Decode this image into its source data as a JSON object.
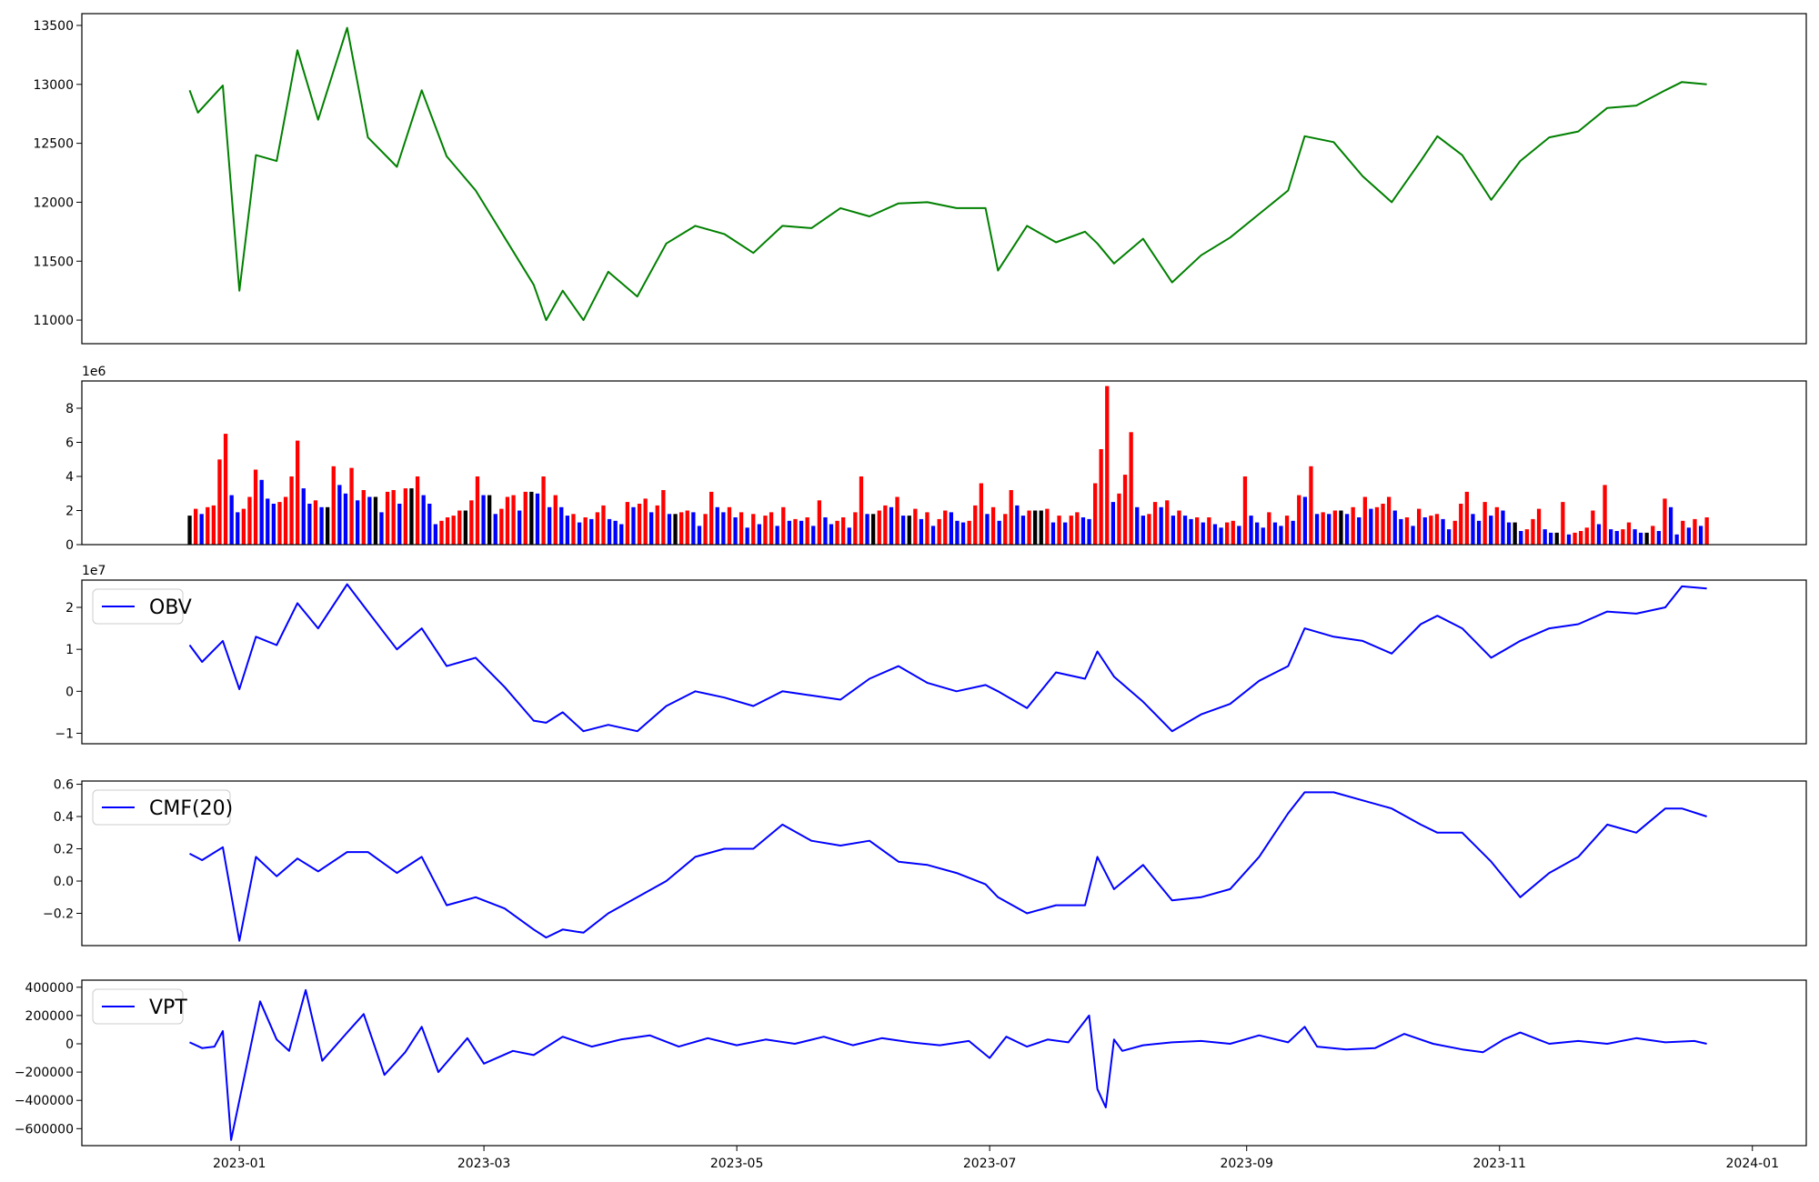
{
  "chart_data": [
    {
      "id": "price",
      "type": "line",
      "ylim": [
        10800,
        13600
      ],
      "yticks": [
        11000,
        11500,
        12000,
        12500,
        13000,
        13500
      ],
      "ytick_labels": [
        "11000",
        "11500",
        "12000",
        "12500",
        "13000",
        "13500"
      ],
      "offset_label": "",
      "legend": "",
      "color": "#008000",
      "series": [
        {
          "x": [
            "2022-12-20",
            "2022-12-22",
            "2022-12-28",
            "2023-01-01",
            "2023-01-05",
            "2023-01-10",
            "2023-01-15",
            "2023-01-20",
            "2023-01-27",
            "2023-02-01",
            "2023-02-08",
            "2023-02-14",
            "2023-02-20",
            "2023-02-27",
            "2023-03-06",
            "2023-03-13",
            "2023-03-16",
            "2023-03-20",
            "2023-03-25",
            "2023-03-31",
            "2023-04-07",
            "2023-04-14",
            "2023-04-21",
            "2023-04-28",
            "2023-05-05",
            "2023-05-12",
            "2023-05-19",
            "2023-05-26",
            "2023-06-02",
            "2023-06-09",
            "2023-06-16",
            "2023-06-23",
            "2023-06-30",
            "2023-07-03",
            "2023-07-10",
            "2023-07-17",
            "2023-07-24",
            "2023-07-27",
            "2023-07-31",
            "2023-08-07",
            "2023-08-14",
            "2023-08-21",
            "2023-08-28",
            "2023-09-04",
            "2023-09-11",
            "2023-09-15",
            "2023-09-22",
            "2023-09-29",
            "2023-10-06",
            "2023-10-13",
            "2023-10-17",
            "2023-10-23",
            "2023-10-30",
            "2023-11-06",
            "2023-11-13",
            "2023-11-20",
            "2023-11-27",
            "2023-12-04",
            "2023-12-11",
            "2023-12-15",
            "2023-12-21"
          ],
          "values": [
            12950,
            12760,
            12990,
            11250,
            12400,
            12350,
            13290,
            12700,
            13480,
            12550,
            12300,
            12950,
            12390,
            12100,
            11700,
            11300,
            11000,
            11250,
            11000,
            11410,
            11200,
            11650,
            11800,
            11730,
            11570,
            11800,
            11780,
            11950,
            11880,
            11990,
            12000,
            11950,
            11950,
            11420,
            11800,
            11660,
            11750,
            11650,
            11480,
            11690,
            11320,
            11550,
            11700,
            11900,
            12100,
            12560,
            12510,
            12220,
            12000,
            12350,
            12560,
            12400,
            12020,
            12350,
            12550,
            12600,
            12800,
            12820,
            12950,
            13020,
            13000
          ]
        }
      ]
    },
    {
      "id": "volume",
      "type": "bar",
      "ylim": [
        0,
        9600000
      ],
      "yticks": [
        0,
        2000000,
        4000000,
        6000000,
        8000000
      ],
      "ytick_labels": [
        "0",
        "2",
        "4",
        "6",
        "8"
      ],
      "offset_label": "1e6",
      "legend": "",
      "colors": {
        "up": "#ff0000",
        "down": "#0000ff",
        "flat": "#000000"
      },
      "series": [
        {
          "x_range": [
            "2022-12-20",
            "2023-12-21"
          ],
          "values": [
            1.7,
            2.1,
            1.8,
            2.2,
            2.3,
            5.0,
            6.5,
            2.9,
            1.9,
            2.1,
            2.8,
            4.4,
            3.8,
            2.7,
            2.4,
            2.5,
            2.8,
            4.0,
            6.1,
            3.3,
            2.4,
            2.6,
            2.2,
            2.2,
            4.6,
            3.5,
            3.0,
            4.5,
            2.6,
            3.2,
            2.8,
            2.8,
            1.9,
            3.1,
            3.2,
            2.4,
            3.3,
            3.3,
            4.0,
            2.9,
            2.4,
            1.2,
            1.4,
            1.6,
            1.7,
            2.0,
            2.0,
            2.6,
            4.0,
            2.9,
            2.9,
            1.8,
            2.1,
            2.8,
            2.9,
            2.0,
            3.1,
            3.1,
            3.0,
            4.0,
            2.2,
            2.9,
            2.2,
            1.7,
            1.8,
            1.3,
            1.6,
            1.5,
            1.9,
            2.3,
            1.5,
            1.4,
            1.2,
            2.5,
            2.2,
            2.4,
            2.7,
            1.9,
            2.3,
            3.2,
            1.8,
            1.8,
            1.9,
            2.0,
            1.9,
            1.1,
            1.8,
            3.1,
            2.2,
            1.9,
            2.2,
            1.6,
            1.9,
            1.0,
            1.8,
            1.2,
            1.7,
            1.9,
            1.1,
            2.2,
            1.4,
            1.5,
            1.4,
            1.6,
            1.1,
            2.6,
            1.6,
            1.2,
            1.4,
            1.6,
            1.0,
            1.9,
            4.0,
            1.8,
            1.8,
            2.0,
            2.3,
            2.2,
            2.8,
            1.7,
            1.7,
            2.1,
            1.5,
            1.9,
            1.1,
            1.5,
            2.0,
            1.9,
            1.4,
            1.3,
            1.4,
            2.3,
            3.6,
            1.8,
            2.2,
            1.4,
            1.8,
            3.2,
            2.3,
            1.7,
            2.0,
            2.0,
            2.0,
            2.1,
            1.3,
            1.7,
            1.3,
            1.7,
            1.9,
            1.6,
            1.5,
            3.6,
            5.6,
            9.3,
            2.5,
            3.0,
            4.1,
            6.6,
            2.2,
            1.7,
            1.8,
            2.5,
            2.2,
            2.6,
            1.7,
            2.0,
            1.7,
            1.5,
            1.6,
            1.3,
            1.6,
            1.2,
            1.0,
            1.3,
            1.4,
            1.1,
            4.0,
            1.7,
            1.3,
            1.0,
            1.9,
            1.3,
            1.1,
            1.7,
            1.4,
            2.9,
            2.8,
            4.6,
            1.8,
            1.9,
            1.8,
            2.0,
            2.0,
            1.8,
            2.2,
            1.6,
            2.8,
            2.1,
            2.2,
            2.4,
            2.8,
            2.0,
            1.5,
            1.6,
            1.1,
            2.1,
            1.6,
            1.7,
            1.8,
            1.5,
            0.9,
            1.4,
            2.4,
            3.1,
            1.8,
            1.4,
            2.5,
            1.7,
            2.2,
            2.0,
            1.3,
            1.3,
            0.8,
            0.9,
            1.5,
            2.1,
            0.9,
            0.7,
            0.7,
            2.5,
            0.6,
            0.7,
            0.8,
            1.0,
            2.0,
            1.2,
            3.5,
            0.9,
            0.8,
            0.9,
            1.3,
            0.9,
            0.7,
            0.7,
            1.1,
            0.8,
            2.7,
            2.2,
            0.6,
            1.4,
            1.0,
            1.5,
            1.1,
            1.6
          ]
        }
      ]
    },
    {
      "id": "obv",
      "type": "line",
      "ylim": [
        -12500000,
        26500000
      ],
      "yticks": [
        -10000000,
        0,
        10000000,
        20000000
      ],
      "ytick_labels": [
        "−1",
        "0",
        "1",
        "2"
      ],
      "offset_label": "1e7",
      "legend": "OBV",
      "color": "#0000ff",
      "series": [
        {
          "name": "OBV",
          "x": [
            "2022-12-20",
            "2022-12-23",
            "2022-12-28",
            "2023-01-01",
            "2023-01-05",
            "2023-01-10",
            "2023-01-15",
            "2023-01-20",
            "2023-01-27",
            "2023-02-01",
            "2023-02-08",
            "2023-02-14",
            "2023-02-20",
            "2023-02-27",
            "2023-03-06",
            "2023-03-13",
            "2023-03-16",
            "2023-03-20",
            "2023-03-25",
            "2023-03-31",
            "2023-04-07",
            "2023-04-14",
            "2023-04-21",
            "2023-04-28",
            "2023-05-05",
            "2023-05-12",
            "2023-05-19",
            "2023-05-26",
            "2023-06-02",
            "2023-06-09",
            "2023-06-16",
            "2023-06-23",
            "2023-06-30",
            "2023-07-03",
            "2023-07-10",
            "2023-07-17",
            "2023-07-24",
            "2023-07-27",
            "2023-07-31",
            "2023-08-07",
            "2023-08-14",
            "2023-08-21",
            "2023-08-28",
            "2023-09-04",
            "2023-09-11",
            "2023-09-15",
            "2023-09-22",
            "2023-09-29",
            "2023-10-06",
            "2023-10-13",
            "2023-10-17",
            "2023-10-23",
            "2023-10-30",
            "2023-11-06",
            "2023-11-13",
            "2023-11-20",
            "2023-11-27",
            "2023-12-04",
            "2023-12-11",
            "2023-12-15",
            "2023-12-21"
          ],
          "values": [
            11000000,
            7000000,
            12000000,
            500000,
            13000000,
            11000000,
            21000000,
            15000000,
            25500000,
            19000000,
            10000000,
            15000000,
            6000000,
            8000000,
            1000000,
            -7000000,
            -7500000,
            -5000000,
            -9500000,
            -8000000,
            -9500000,
            -3500000,
            0,
            -1500000,
            -3500000,
            0,
            -1000000,
            -2000000,
            3000000,
            6000000,
            2000000,
            0,
            1500000,
            0,
            -4000000,
            4500000,
            3000000,
            9500000,
            3500000,
            -2500000,
            -9500000,
            -5500000,
            -3000000,
            2500000,
            6000000,
            15000000,
            13000000,
            12000000,
            9000000,
            16000000,
            18000000,
            15000000,
            8000000,
            12000000,
            15000000,
            16000000,
            19000000,
            18500000,
            20000000,
            25000000,
            24500000
          ]
        }
      ]
    },
    {
      "id": "cmf",
      "type": "line",
      "ylim": [
        -0.4,
        0.62
      ],
      "yticks": [
        -0.2,
        0.0,
        0.2,
        0.4,
        0.6
      ],
      "ytick_labels": [
        "−0.2",
        "0.0",
        "0.2",
        "0.4",
        "0.6"
      ],
      "offset_label": "",
      "legend": "CMF(20)",
      "color": "#0000ff",
      "series": [
        {
          "name": "CMF(20)",
          "x": [
            "2022-12-20",
            "2022-12-23",
            "2022-12-28",
            "2023-01-01",
            "2023-01-05",
            "2023-01-10",
            "2023-01-15",
            "2023-01-20",
            "2023-01-27",
            "2023-02-01",
            "2023-02-08",
            "2023-02-14",
            "2023-02-20",
            "2023-02-27",
            "2023-03-06",
            "2023-03-13",
            "2023-03-16",
            "2023-03-20",
            "2023-03-25",
            "2023-03-31",
            "2023-04-07",
            "2023-04-14",
            "2023-04-21",
            "2023-04-28",
            "2023-05-05",
            "2023-05-12",
            "2023-05-19",
            "2023-05-26",
            "2023-06-02",
            "2023-06-09",
            "2023-06-16",
            "2023-06-23",
            "2023-06-30",
            "2023-07-03",
            "2023-07-10",
            "2023-07-17",
            "2023-07-24",
            "2023-07-27",
            "2023-07-31",
            "2023-08-07",
            "2023-08-14",
            "2023-08-21",
            "2023-08-28",
            "2023-09-04",
            "2023-09-11",
            "2023-09-15",
            "2023-09-22",
            "2023-09-29",
            "2023-10-06",
            "2023-10-13",
            "2023-10-17",
            "2023-10-23",
            "2023-10-30",
            "2023-11-06",
            "2023-11-13",
            "2023-11-20",
            "2023-11-27",
            "2023-12-04",
            "2023-12-11",
            "2023-12-15",
            "2023-12-21"
          ],
          "values": [
            0.17,
            0.13,
            0.21,
            -0.37,
            0.15,
            0.03,
            0.14,
            0.06,
            0.18,
            0.18,
            0.05,
            0.15,
            -0.15,
            -0.1,
            -0.17,
            -0.3,
            -0.35,
            -0.3,
            -0.32,
            -0.2,
            -0.1,
            0.0,
            0.15,
            0.2,
            0.2,
            0.35,
            0.25,
            0.22,
            0.25,
            0.12,
            0.1,
            0.05,
            -0.02,
            -0.1,
            -0.2,
            -0.15,
            -0.15,
            0.15,
            -0.05,
            0.1,
            -0.12,
            -0.1,
            -0.05,
            0.15,
            0.42,
            0.55,
            0.55,
            0.5,
            0.45,
            0.35,
            0.3,
            0.3,
            0.12,
            -0.1,
            0.05,
            0.15,
            0.35,
            0.3,
            0.45,
            0.45,
            0.4
          ]
        }
      ]
    },
    {
      "id": "vpt",
      "type": "line",
      "ylim": [
        -720000,
        450000
      ],
      "yticks": [
        -600000,
        -400000,
        -200000,
        0,
        200000,
        400000
      ],
      "ytick_labels": [
        "−600000",
        "−400000",
        "−200000",
        "0",
        "200000",
        "400000"
      ],
      "offset_label": "",
      "legend": "VPT",
      "color": "#0000ff",
      "xticks": [
        "2023-01-01",
        "2023-03-01",
        "2023-05-01",
        "2023-07-01",
        "2023-09-01",
        "2023-11-01",
        "2024-01-01"
      ],
      "xtick_labels": [
        "2023-01",
        "2023-03",
        "2023-05",
        "2023-07",
        "2023-09",
        "2023-11",
        "2024-01"
      ],
      "series": [
        {
          "name": "VPT",
          "x": [
            "2022-12-20",
            "2022-12-23",
            "2022-12-26",
            "2022-12-28",
            "2022-12-30",
            "2023-01-06",
            "2023-01-10",
            "2023-01-13",
            "2023-01-17",
            "2023-01-21",
            "2023-01-27",
            "2023-01-31",
            "2023-02-05",
            "2023-02-10",
            "2023-02-14",
            "2023-02-18",
            "2023-02-25",
            "2023-03-01",
            "2023-03-08",
            "2023-03-13",
            "2023-03-20",
            "2023-03-27",
            "2023-04-03",
            "2023-04-10",
            "2023-04-17",
            "2023-04-24",
            "2023-05-01",
            "2023-05-08",
            "2023-05-15",
            "2023-05-22",
            "2023-05-29",
            "2023-06-05",
            "2023-06-12",
            "2023-06-19",
            "2023-06-26",
            "2023-07-01",
            "2023-07-05",
            "2023-07-10",
            "2023-07-15",
            "2023-07-20",
            "2023-07-25",
            "2023-07-27",
            "2023-07-29",
            "2023-07-31",
            "2023-08-02",
            "2023-08-07",
            "2023-08-14",
            "2023-08-21",
            "2023-08-28",
            "2023-09-04",
            "2023-09-11",
            "2023-09-15",
            "2023-09-18",
            "2023-09-25",
            "2023-10-02",
            "2023-10-09",
            "2023-10-16",
            "2023-10-23",
            "2023-10-28",
            "2023-11-02",
            "2023-11-06",
            "2023-11-13",
            "2023-11-20",
            "2023-11-27",
            "2023-12-04",
            "2023-12-11",
            "2023-12-18",
            "2023-12-21"
          ],
          "values": [
            10000,
            -30000,
            -20000,
            90000,
            -680000,
            300000,
            30000,
            -50000,
            380000,
            -120000,
            80000,
            210000,
            -220000,
            -60000,
            120000,
            -200000,
            40000,
            -140000,
            -50000,
            -80000,
            50000,
            -20000,
            30000,
            60000,
            -20000,
            40000,
            -10000,
            30000,
            0,
            50000,
            -10000,
            40000,
            10000,
            -10000,
            20000,
            -100000,
            50000,
            -20000,
            30000,
            10000,
            200000,
            -320000,
            -450000,
            30000,
            -50000,
            -10000,
            10000,
            20000,
            0,
            60000,
            10000,
            120000,
            -20000,
            -40000,
            -30000,
            70000,
            0,
            -40000,
            -60000,
            30000,
            80000,
            0,
            20000,
            0,
            40000,
            10000,
            20000,
            0
          ]
        }
      ]
    }
  ]
}
